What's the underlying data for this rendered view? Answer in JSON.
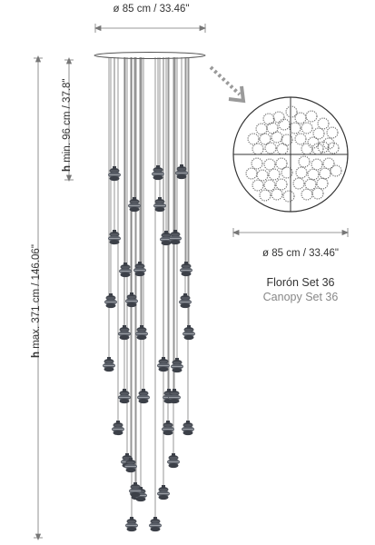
{
  "dimensions": {
    "top_width": "ø 85 cm / 33.46\"",
    "canopy_width": "ø 85 cm / 33.46\"",
    "h_min_prefix": "h",
    "h_min_value": " min. 96 cm / 37.8\"",
    "h_max_prefix": "h",
    "h_max_value": " max. 371 cm / 146.06\""
  },
  "canopy": {
    "name_es": "Florón Set 36",
    "name_en": "Canopy Set 36"
  },
  "colors": {
    "line": "#6a6a6a",
    "dimension": "#777777",
    "arrow": "#9a9a9a",
    "lamp_dark": "#3c4048",
    "canopy_dots": "#444444"
  },
  "pendant_count": 36
}
